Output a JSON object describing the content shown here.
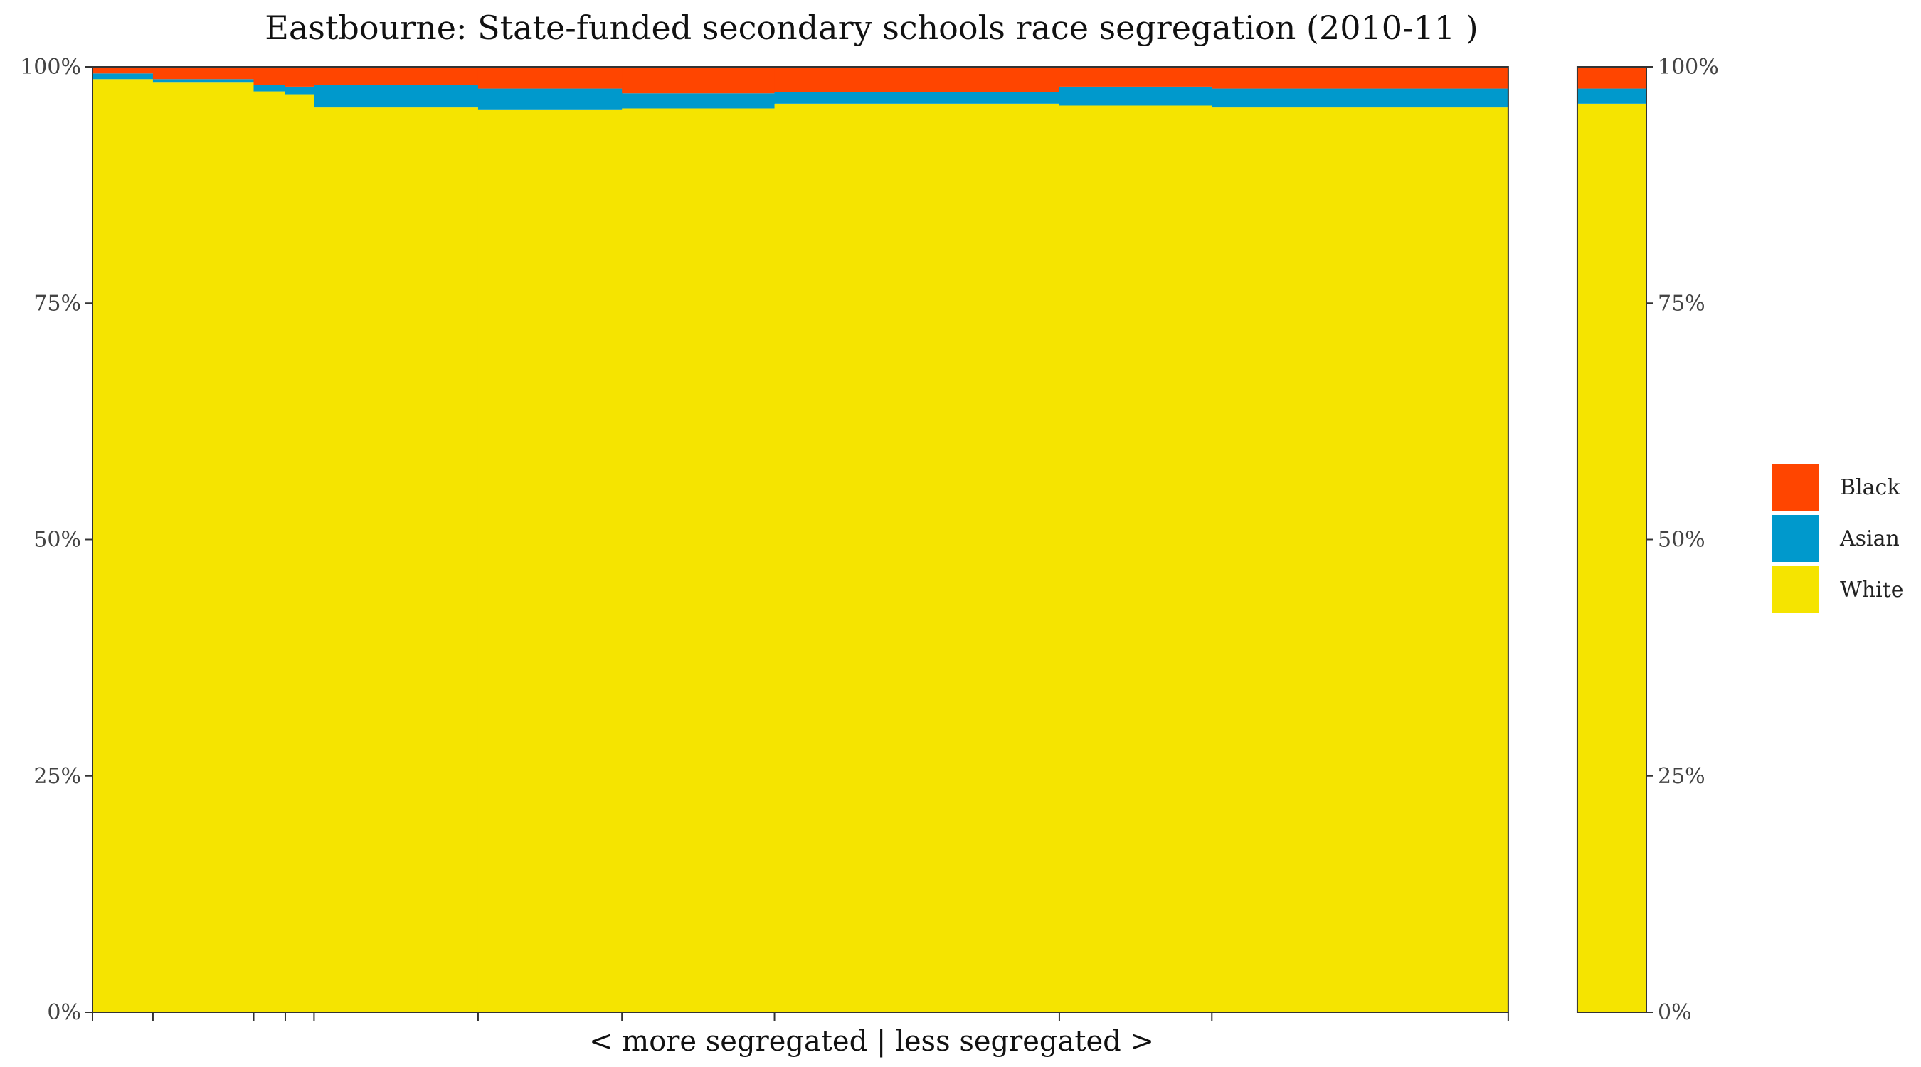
{
  "chart_data": {
    "type": "bar",
    "subtype": "marimekko-stacked-100-percent",
    "title": "Eastbourne: State-funded secondary schools race segregation (2010-11 )",
    "xlabel": "< more segregated | less segregated >",
    "ylabel": "",
    "ylim": [
      0,
      100
    ],
    "y_ticks": [
      "0%",
      "25%",
      "50%",
      "75%",
      "100%"
    ],
    "y_axis_sides": "both",
    "grid": false,
    "legend_position": "right",
    "series": [
      {
        "name": "Black",
        "color": "#FF4500"
      },
      {
        "name": "Asian",
        "color": "#0099CC"
      },
      {
        "name": "White",
        "color": "#F5E400"
      }
    ],
    "schools": [
      {
        "width": 2.1,
        "white": 98.7,
        "asian": 0.6,
        "black": 0.7
      },
      {
        "width": 3.5,
        "white": 98.4,
        "asian": 0.3,
        "black": 1.3
      },
      {
        "width": 1.1,
        "white": 97.4,
        "asian": 0.7,
        "black": 1.9
      },
      {
        "width": 1.0,
        "white": 97.1,
        "asian": 0.8,
        "black": 2.1
      },
      {
        "width": 5.7,
        "white": 95.7,
        "asian": 2.4,
        "black": 1.9
      },
      {
        "width": 5.0,
        "white": 95.5,
        "asian": 2.2,
        "black": 2.3
      },
      {
        "width": 5.3,
        "white": 95.6,
        "asian": 1.6,
        "black": 2.8
      },
      {
        "width": 9.9,
        "white": 96.1,
        "asian": 1.2,
        "black": 2.7
      },
      {
        "width": 5.3,
        "white": 95.9,
        "asian": 2.0,
        "black": 2.1
      },
      {
        "width": 10.3,
        "white": 95.7,
        "asian": 2.0,
        "black": 2.3
      }
    ],
    "gap_width": 2.4,
    "total": {
      "width": 2.4,
      "white": 96.1,
      "asian": 1.6,
      "black": 2.3
    }
  }
}
